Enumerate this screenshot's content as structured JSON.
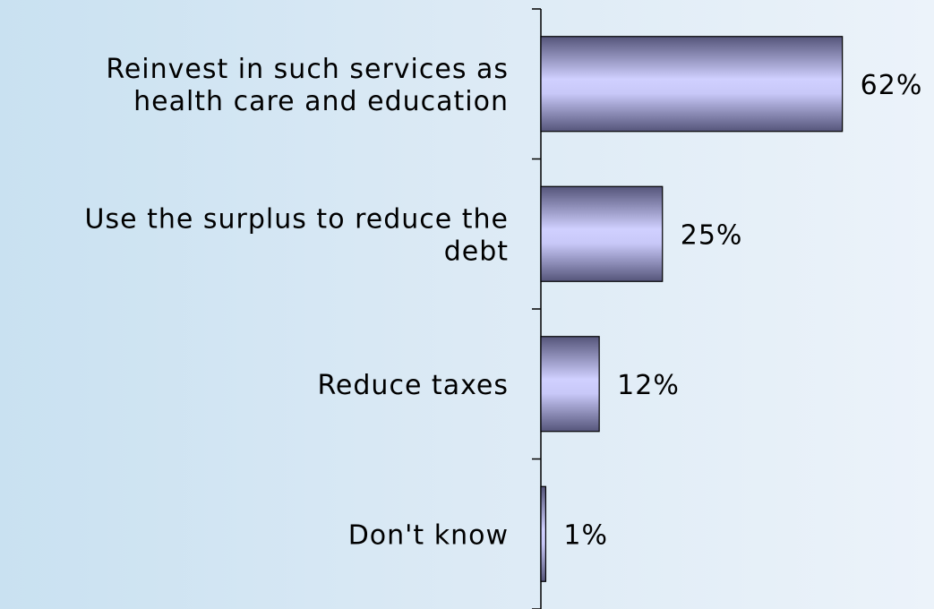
{
  "chart_data": {
    "type": "bar",
    "orientation": "horizontal",
    "categories": [
      [
        "Reinvest in such services as",
        "health care and education"
      ],
      [
        "Use the surplus to reduce the",
        "debt"
      ],
      [
        "Reduce taxes"
      ],
      [
        "Don't know"
      ]
    ],
    "values": [
      62,
      25,
      12,
      1
    ],
    "value_labels": [
      "62%",
      "25%",
      "12%",
      "1%"
    ],
    "xlim": [
      0,
      100
    ],
    "grid": false,
    "legend": "none"
  },
  "colors": {
    "bar_light": "#d0d0ff",
    "bar_dark": "#55557a",
    "axis": "#000000"
  }
}
